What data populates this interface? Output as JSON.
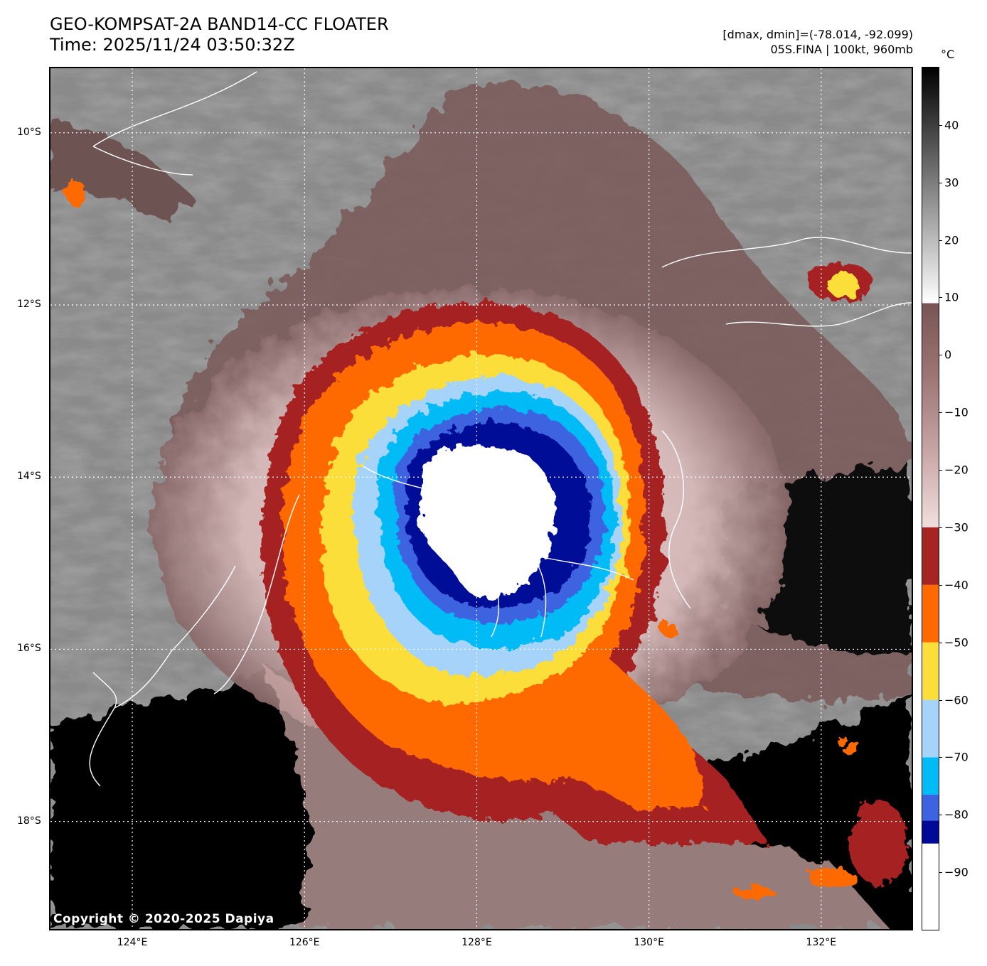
{
  "header": {
    "title_line1": "GEO-KOMPSAT-2A BAND14-CC FLOATER",
    "title_line2": "Time: 2025/11/24 03:50:32Z",
    "meta_line1": "[dmax, dmin]=(-78.014, -92.099)",
    "meta_line2": "05S.FINA | 100kt, 960mb"
  },
  "colorbar": {
    "unit": "°C",
    "ticks": [
      "40",
      "30",
      "20",
      "10",
      "0",
      "−10",
      "−20",
      "−30",
      "−40",
      "−50",
      "−60",
      "−70",
      "−80",
      "−90"
    ],
    "tick_values": [
      40,
      30,
      20,
      10,
      0,
      -10,
      -20,
      -30,
      -40,
      -50,
      -60,
      -70,
      -80,
      -90
    ],
    "range": [
      -100,
      50
    ],
    "stops": [
      {
        "from": -100,
        "to": -85,
        "color": "#ffffff"
      },
      {
        "from": -85,
        "to": -81,
        "color": "#000a96"
      },
      {
        "from": -81,
        "to": -76.5,
        "color": "#3c64e1"
      },
      {
        "from": -76.5,
        "to": -70,
        "color": "#00bbf5"
      },
      {
        "from": -70,
        "to": -60,
        "color": "#a5d3fa"
      },
      {
        "from": -60,
        "to": -50,
        "color": "#fcde3a"
      },
      {
        "from": -50,
        "to": -40,
        "color": "#ff6a00"
      },
      {
        "from": -40,
        "to": -30,
        "color": "#a62424"
      }
    ],
    "gradient_warm": [
      "#f2dede",
      "#c9a6a6",
      "#9e7676",
      "#7a5454"
    ],
    "gradient_gray": [
      "#ffffff",
      "#000000"
    ]
  },
  "map": {
    "lat_labels": [
      "10°S",
      "12°S",
      "14°S",
      "16°S",
      "18°S"
    ],
    "lon_labels": [
      "124°E",
      "126°E",
      "128°E",
      "130°E",
      "132°E"
    ],
    "lat_values": [
      -10,
      -12,
      -14,
      -16,
      -18
    ],
    "lon_values": [
      124,
      126,
      128,
      130,
      132
    ],
    "lon_range": [
      123.05,
      133.05
    ],
    "lat_range": [
      -9.25,
      -19.25
    ],
    "storm_center": {
      "lon": 128.6,
      "lat": -14.05
    },
    "colors": {
      "eyewall_white": "#ffffff",
      "cold_navy": "#000a96",
      "royal_blue": "#3c64e1",
      "cyan": "#00bbf5",
      "light_blue": "#a5d3fa",
      "yellow": "#fcde3a",
      "orange": "#ff6a00",
      "dark_red": "#a62424",
      "pink_gray": "#c9a6a6",
      "brown_gray": "#7a5a5a",
      "ocean_black": "#050505",
      "gray_clouds": "#8a8a8a"
    }
  },
  "copyright": "Copyright © 2020-2025 Dapiya"
}
